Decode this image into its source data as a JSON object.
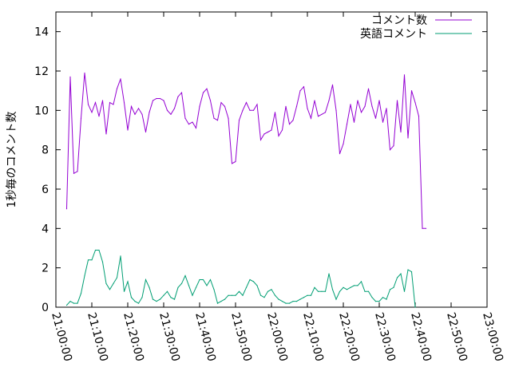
{
  "chart_data": {
    "type": "line",
    "ylabel": "1秒毎のコメント数",
    "xlabel": "",
    "title": "",
    "ylim": [
      0,
      15
    ],
    "xlim": [
      "21:00:00",
      "23:00:00"
    ],
    "yticks": [
      "0",
      "2",
      "4",
      "6",
      "8",
      "10",
      "12",
      "14"
    ],
    "xticks": [
      "21:00:00",
      "21:10:00",
      "21:20:00",
      "21:30:00",
      "21:40:00",
      "21:50:00",
      "22:00:00",
      "22:10:00",
      "22:20:00",
      "22:30:00",
      "22:40:00",
      "22:50:00",
      "23:00:00"
    ],
    "grid": false,
    "legend_position": "top-right",
    "series": [
      {
        "name": "コメント数",
        "color": "#9400d3",
        "points": [
          [
            "21:03:00",
            5.0
          ],
          [
            "21:04:00",
            11.7
          ],
          [
            "21:05:00",
            6.8
          ],
          [
            "21:06:00",
            6.9
          ],
          [
            "21:07:00",
            9.6
          ],
          [
            "21:08:00",
            11.9
          ],
          [
            "21:09:00",
            10.3
          ],
          [
            "21:10:00",
            9.9
          ],
          [
            "21:11:00",
            10.4
          ],
          [
            "21:12:00",
            9.7
          ],
          [
            "21:13:00",
            10.5
          ],
          [
            "21:14:00",
            8.8
          ],
          [
            "21:15:00",
            10.4
          ],
          [
            "21:16:00",
            10.3
          ],
          [
            "21:17:00",
            11.1
          ],
          [
            "21:18:00",
            11.6
          ],
          [
            "21:19:00",
            10.4
          ],
          [
            "21:20:00",
            9.0
          ],
          [
            "21:21:00",
            10.2
          ],
          [
            "21:22:00",
            9.8
          ],
          [
            "21:23:00",
            10.1
          ],
          [
            "21:24:00",
            9.8
          ],
          [
            "21:25:00",
            8.9
          ],
          [
            "21:26:00",
            9.9
          ],
          [
            "21:27:00",
            10.5
          ],
          [
            "21:28:00",
            10.6
          ],
          [
            "21:29:00",
            10.6
          ],
          [
            "21:30:00",
            10.5
          ],
          [
            "21:31:00",
            10.0
          ],
          [
            "21:32:00",
            9.8
          ],
          [
            "21:33:00",
            10.1
          ],
          [
            "21:34:00",
            10.7
          ],
          [
            "21:35:00",
            10.9
          ],
          [
            "21:36:00",
            9.6
          ],
          [
            "21:37:00",
            9.3
          ],
          [
            "21:38:00",
            9.4
          ],
          [
            "21:39:00",
            9.1
          ],
          [
            "21:40:00",
            10.2
          ],
          [
            "21:41:00",
            10.9
          ],
          [
            "21:42:00",
            11.1
          ],
          [
            "21:43:00",
            10.5
          ],
          [
            "21:44:00",
            9.6
          ],
          [
            "21:45:00",
            9.5
          ],
          [
            "21:46:00",
            10.4
          ],
          [
            "21:47:00",
            10.2
          ],
          [
            "21:48:00",
            9.6
          ],
          [
            "21:49:00",
            7.3
          ],
          [
            "21:50:00",
            7.4
          ],
          [
            "21:51:00",
            9.5
          ],
          [
            "21:52:00",
            10.0
          ],
          [
            "21:53:00",
            10.4
          ],
          [
            "21:54:00",
            10.0
          ],
          [
            "21:55:00",
            10.0
          ],
          [
            "21:56:00",
            10.3
          ],
          [
            "21:57:00",
            8.5
          ],
          [
            "21:58:00",
            8.8
          ],
          [
            "21:59:00",
            8.9
          ],
          [
            "22:00:00",
            9.0
          ],
          [
            "22:01:00",
            9.9
          ],
          [
            "22:02:00",
            8.7
          ],
          [
            "22:03:00",
            9.0
          ],
          [
            "22:04:00",
            10.2
          ],
          [
            "22:05:00",
            9.3
          ],
          [
            "22:06:00",
            9.5
          ],
          [
            "22:07:00",
            10.2
          ],
          [
            "22:08:00",
            11.0
          ],
          [
            "22:09:00",
            11.2
          ],
          [
            "22:10:00",
            10.1
          ],
          [
            "22:11:00",
            9.6
          ],
          [
            "22:12:00",
            10.5
          ],
          [
            "22:13:00",
            9.7
          ],
          [
            "22:14:00",
            9.8
          ],
          [
            "22:15:00",
            9.9
          ],
          [
            "22:16:00",
            10.5
          ],
          [
            "22:17:00",
            11.3
          ],
          [
            "22:18:00",
            10.0
          ],
          [
            "22:19:00",
            7.8
          ],
          [
            "22:20:00",
            8.3
          ],
          [
            "22:21:00",
            9.3
          ],
          [
            "22:22:00",
            10.3
          ],
          [
            "22:23:00",
            9.4
          ],
          [
            "22:24:00",
            10.5
          ],
          [
            "22:25:00",
            9.9
          ],
          [
            "22:26:00",
            10.2
          ],
          [
            "22:27:00",
            11.1
          ],
          [
            "22:28:00",
            10.2
          ],
          [
            "22:29:00",
            9.6
          ],
          [
            "22:30:00",
            10.5
          ],
          [
            "22:31:00",
            9.4
          ],
          [
            "22:32:00",
            10.1
          ],
          [
            "22:33:00",
            8.0
          ],
          [
            "22:34:00",
            8.2
          ],
          [
            "22:35:00",
            10.5
          ],
          [
            "22:36:00",
            8.9
          ],
          [
            "22:37:00",
            11.8
          ],
          [
            "22:38:00",
            8.6
          ],
          [
            "22:39:00",
            11.0
          ],
          [
            "22:40:00",
            10.4
          ],
          [
            "22:41:00",
            9.7
          ],
          [
            "22:42:00",
            4.0
          ],
          [
            "22:43:00",
            4.0
          ]
        ]
      },
      {
        "name": "英語コメント",
        "color": "#009e73",
        "points": [
          [
            "21:03:00",
            0.1
          ],
          [
            "21:04:00",
            0.3
          ],
          [
            "21:05:00",
            0.2
          ],
          [
            "21:06:00",
            0.2
          ],
          [
            "21:07:00",
            0.7
          ],
          [
            "21:08:00",
            1.6
          ],
          [
            "21:09:00",
            2.4
          ],
          [
            "21:10:00",
            2.4
          ],
          [
            "21:11:00",
            2.9
          ],
          [
            "21:12:00",
            2.9
          ],
          [
            "21:13:00",
            2.3
          ],
          [
            "21:14:00",
            1.2
          ],
          [
            "21:15:00",
            0.9
          ],
          [
            "21:16:00",
            1.2
          ],
          [
            "21:17:00",
            1.5
          ],
          [
            "21:18:00",
            2.6
          ],
          [
            "21:19:00",
            0.8
          ],
          [
            "21:20:00",
            1.3
          ],
          [
            "21:21:00",
            0.5
          ],
          [
            "21:22:00",
            0.3
          ],
          [
            "21:23:00",
            0.2
          ],
          [
            "21:24:00",
            0.5
          ],
          [
            "21:25:00",
            1.4
          ],
          [
            "21:26:00",
            1.0
          ],
          [
            "21:27:00",
            0.4
          ],
          [
            "21:28:00",
            0.3
          ],
          [
            "21:29:00",
            0.4
          ],
          [
            "21:30:00",
            0.6
          ],
          [
            "21:31:00",
            0.8
          ],
          [
            "21:32:00",
            0.5
          ],
          [
            "21:33:00",
            0.4
          ],
          [
            "21:34:00",
            1.0
          ],
          [
            "21:35:00",
            1.2
          ],
          [
            "21:36:00",
            1.6
          ],
          [
            "21:37:00",
            1.1
          ],
          [
            "21:38:00",
            0.6
          ],
          [
            "21:39:00",
            1.0
          ],
          [
            "21:40:00",
            1.4
          ],
          [
            "21:41:00",
            1.4
          ],
          [
            "21:42:00",
            1.1
          ],
          [
            "21:43:00",
            1.4
          ],
          [
            "21:44:00",
            0.9
          ],
          [
            "21:45:00",
            0.2
          ],
          [
            "21:46:00",
            0.3
          ],
          [
            "21:47:00",
            0.4
          ],
          [
            "21:48:00",
            0.6
          ],
          [
            "21:49:00",
            0.6
          ],
          [
            "21:50:00",
            0.6
          ],
          [
            "21:51:00",
            0.8
          ],
          [
            "21:52:00",
            0.6
          ],
          [
            "21:53:00",
            1.0
          ],
          [
            "21:54:00",
            1.4
          ],
          [
            "21:55:00",
            1.3
          ],
          [
            "21:56:00",
            1.1
          ],
          [
            "21:57:00",
            0.6
          ],
          [
            "21:58:00",
            0.5
          ],
          [
            "21:59:00",
            0.8
          ],
          [
            "22:00:00",
            0.9
          ],
          [
            "22:01:00",
            0.6
          ],
          [
            "22:02:00",
            0.4
          ],
          [
            "22:03:00",
            0.3
          ],
          [
            "22:04:00",
            0.2
          ],
          [
            "22:05:00",
            0.2
          ],
          [
            "22:06:00",
            0.3
          ],
          [
            "22:07:00",
            0.3
          ],
          [
            "22:08:00",
            0.4
          ],
          [
            "22:09:00",
            0.5
          ],
          [
            "22:10:00",
            0.6
          ],
          [
            "22:11:00",
            0.6
          ],
          [
            "22:12:00",
            1.0
          ],
          [
            "22:13:00",
            0.8
          ],
          [
            "22:14:00",
            0.8
          ],
          [
            "22:15:00",
            0.8
          ],
          [
            "22:16:00",
            1.7
          ],
          [
            "22:17:00",
            0.9
          ],
          [
            "22:18:00",
            0.4
          ],
          [
            "22:19:00",
            0.8
          ],
          [
            "22:20:00",
            1.0
          ],
          [
            "22:21:00",
            0.9
          ],
          [
            "22:22:00",
            1.0
          ],
          [
            "22:23:00",
            1.1
          ],
          [
            "22:24:00",
            1.1
          ],
          [
            "22:25:00",
            1.3
          ],
          [
            "22:26:00",
            0.8
          ],
          [
            "22:27:00",
            0.8
          ],
          [
            "22:28:00",
            0.5
          ],
          [
            "22:29:00",
            0.3
          ],
          [
            "22:30:00",
            0.3
          ],
          [
            "22:31:00",
            0.5
          ],
          [
            "22:32:00",
            0.4
          ],
          [
            "22:33:00",
            0.9
          ],
          [
            "22:34:00",
            1.0
          ],
          [
            "22:35:00",
            1.5
          ],
          [
            "22:36:00",
            1.7
          ],
          [
            "22:37:00",
            0.8
          ],
          [
            "22:38:00",
            1.9
          ],
          [
            "22:39:00",
            1.8
          ],
          [
            "22:40:00",
            0.0
          ]
        ]
      }
    ]
  }
}
